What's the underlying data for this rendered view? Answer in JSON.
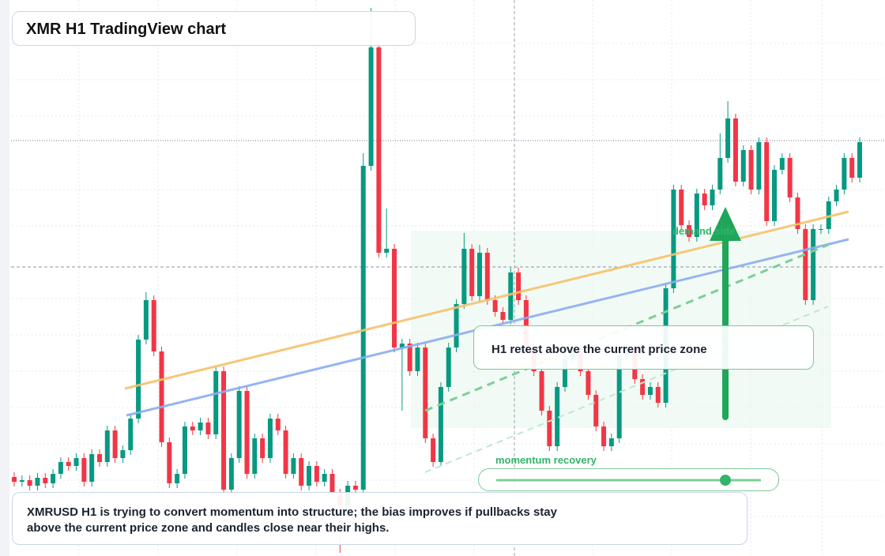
{
  "chart_data": {
    "type": "candlestick",
    "title": "XMR H1 TradingView chart",
    "annotations": [
      "demand side",
      "H1 retest above the current price zone",
      "momentum recovery",
      "XMRUSD H1 is trying to convert momentum into structure; the bias improves if pullbacks stay above the current price zone and candles close near their highs."
    ],
    "ylim": [
      0,
      704
    ],
    "up_color": "#089981",
    "down_color": "#f23645",
    "open": [
      100,
      94,
      96,
      89,
      99,
      92,
      104,
      119,
      114,
      124,
      94,
      129,
      119,
      159,
      124,
      134,
      174,
      274,
      324,
      259,
      144,
      92,
      104,
      164,
      159,
      169,
      154,
      234,
      84,
      124,
      209,
      104,
      149,
      124,
      174,
      159,
      104,
      124,
      89,
      114,
      94,
      104,
      79,
      64,
      89,
      84,
      494,
      644,
      384,
      389,
      264,
      269,
      234,
      264,
      149,
      119,
      214,
      264,
      319,
      389,
      329,
      384,
      324,
      309,
      299,
      359,
      324,
      264,
      234,
      184,
      139,
      214,
      249,
      264,
      234,
      204,
      164,
      139,
      149,
      254,
      264,
      224,
      204,
      214,
      194,
      339,
      464,
      419,
      404,
      459,
      444,
      464,
      504,
      554,
      474,
      514,
      464,
      524,
      424,
      489,
      504,
      454,
      414,
      324,
      414,
      414,
      449,
      464,
      504,
      479
    ],
    "high": [
      106,
      102,
      102,
      105,
      105,
      110,
      125,
      125,
      130,
      130,
      135,
      135,
      165,
      165,
      140,
      180,
      280,
      334,
      330,
      265,
      150,
      110,
      170,
      170,
      175,
      175,
      240,
      240,
      130,
      215,
      215,
      155,
      155,
      180,
      180,
      165,
      130,
      130,
      120,
      120,
      110,
      110,
      85,
      95,
      95,
      510,
      694,
      650,
      440,
      395,
      275,
      275,
      270,
      270,
      155,
      220,
      270,
      325,
      409,
      395,
      394,
      390,
      330,
      315,
      365,
      365,
      330,
      270,
      240,
      190,
      220,
      255,
      270,
      270,
      240,
      210,
      170,
      155,
      260,
      270,
      270,
      230,
      220,
      220,
      345,
      470,
      470,
      425,
      465,
      465,
      470,
      535,
      576,
      560,
      520,
      520,
      530,
      530,
      495,
      510,
      510,
      460,
      420,
      420,
      420,
      455,
      470,
      510,
      510,
      530
    ],
    "low": [
      88,
      88,
      83,
      83,
      86,
      86,
      98,
      108,
      108,
      88,
      88,
      113,
      113,
      118,
      118,
      128,
      168,
      268,
      253,
      138,
      86,
      86,
      98,
      153,
      153,
      148,
      148,
      78,
      78,
      118,
      98,
      98,
      118,
      118,
      153,
      98,
      98,
      83,
      83,
      88,
      88,
      73,
      4,
      58,
      78,
      78,
      488,
      378,
      378,
      258,
      184,
      228,
      228,
      143,
      113,
      113,
      208,
      258,
      313,
      323,
      323,
      318,
      303,
      293,
      293,
      318,
      258,
      228,
      178,
      133,
      133,
      208,
      243,
      228,
      198,
      158,
      133,
      133,
      143,
      248,
      218,
      198,
      198,
      188,
      188,
      333,
      413,
      398,
      398,
      438,
      438,
      458,
      498,
      468,
      468,
      458,
      458,
      418,
      418,
      483,
      448,
      408,
      318,
      318,
      408,
      408,
      443,
      458,
      473,
      473
    ],
    "close": [
      94,
      96,
      89,
      99,
      92,
      104,
      119,
      114,
      124,
      94,
      129,
      119,
      159,
      124,
      134,
      174,
      274,
      324,
      259,
      144,
      92,
      104,
      164,
      159,
      169,
      154,
      234,
      84,
      124,
      209,
      104,
      149,
      124,
      174,
      159,
      104,
      124,
      89,
      114,
      94,
      104,
      79,
      64,
      89,
      84,
      494,
      644,
      384,
      389,
      264,
      269,
      234,
      264,
      149,
      119,
      214,
      264,
      319,
      389,
      329,
      384,
      324,
      309,
      299,
      359,
      324,
      264,
      234,
      184,
      139,
      214,
      249,
      264,
      234,
      204,
      164,
      139,
      149,
      254,
      264,
      224,
      204,
      214,
      194,
      339,
      464,
      419,
      404,
      459,
      444,
      464,
      504,
      554,
      474,
      514,
      464,
      524,
      424,
      489,
      504,
      454,
      414,
      324,
      414,
      414,
      449,
      464,
      504,
      479,
      524
    ]
  }
}
